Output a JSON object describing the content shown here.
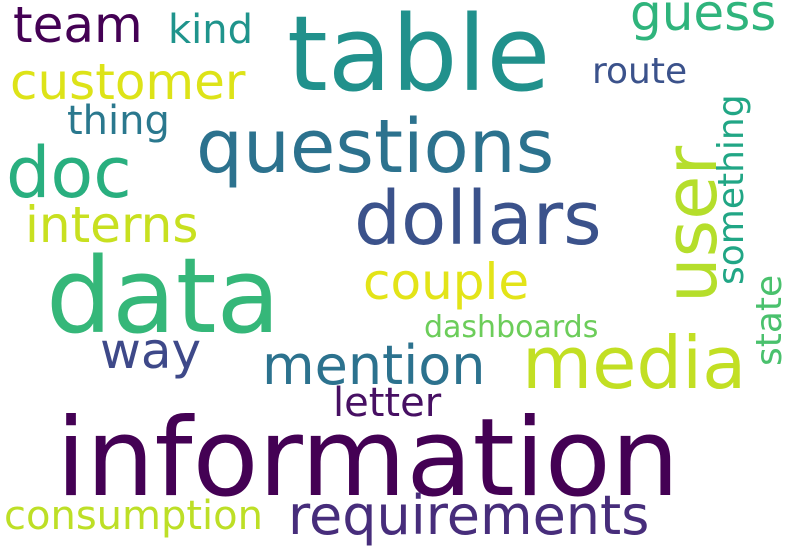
{
  "word_cloud": {
    "background": "#ffffff",
    "words": [
      {
        "text": "information",
        "color": "#440154"
      },
      {
        "text": "table",
        "color": "#21918c"
      },
      {
        "text": "data",
        "color": "#35b779"
      },
      {
        "text": "user",
        "color": "#b5de2b"
      },
      {
        "text": "questions",
        "color": "#2c728e"
      },
      {
        "text": "dollars",
        "color": "#3b528b"
      },
      {
        "text": "media",
        "color": "#c2df23"
      },
      {
        "text": "requirements",
        "color": "#472d7b"
      },
      {
        "text": "customer",
        "color": "#dde318"
      },
      {
        "text": "doc",
        "color": "#29af7f"
      },
      {
        "text": "team",
        "color": "#440154"
      },
      {
        "text": "guess",
        "color": "#2fb47c"
      },
      {
        "text": "mention",
        "color": "#2c728e"
      },
      {
        "text": "interns",
        "color": "#c8e020"
      },
      {
        "text": "couple",
        "color": "#e3e418"
      },
      {
        "text": "way",
        "color": "#3e4989"
      },
      {
        "text": "consumption",
        "color": "#bddf26"
      },
      {
        "text": "kind",
        "color": "#1f948c"
      },
      {
        "text": "thing",
        "color": "#2a788e"
      },
      {
        "text": "route",
        "color": "#3b528b"
      },
      {
        "text": "something",
        "color": "#21a685"
      },
      {
        "text": "state",
        "color": "#4ac16d"
      },
      {
        "text": "dashboards",
        "color": "#6ccd5a"
      },
      {
        "text": "letter",
        "color": "#471063"
      }
    ]
  }
}
